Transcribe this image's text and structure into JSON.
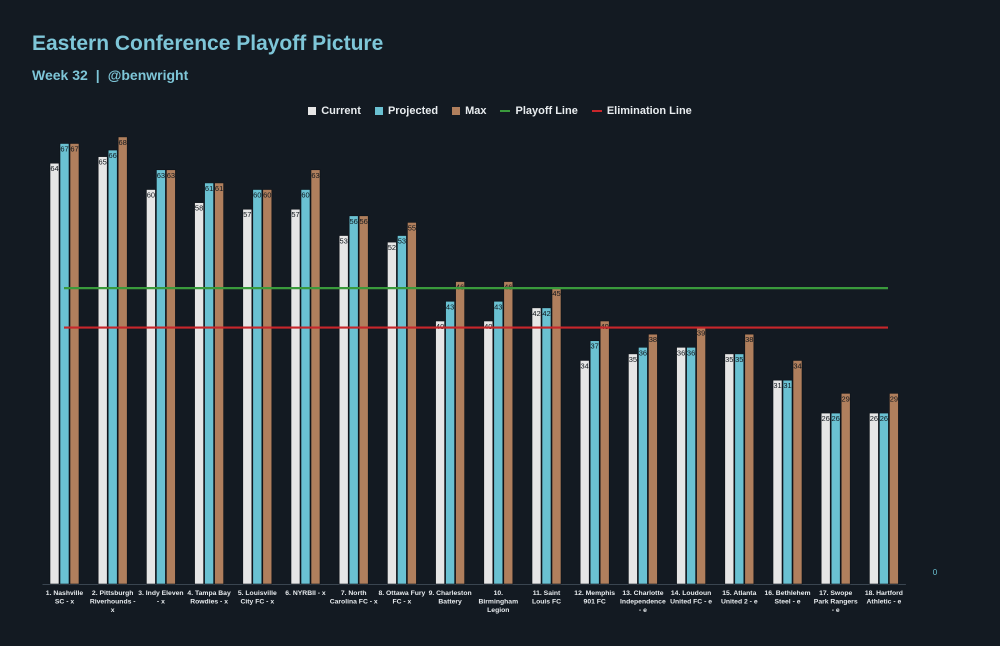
{
  "header": {
    "title": "Eastern Conference Playoff Picture",
    "week": "Week 32",
    "separator": "|",
    "handle": "@benwright"
  },
  "legend": {
    "current": "Current",
    "projected": "Projected",
    "max": "Max",
    "playoff_line": "Playoff Line",
    "elimination_line": "Elimination Line"
  },
  "colors": {
    "background": "#131a22",
    "current": "#e6e6e6",
    "projected": "#6ac1d2",
    "max": "#b07f5d",
    "playoff_line": "#3a9a3c",
    "elimination_line": "#c8262b",
    "title": "#7ec6d8"
  },
  "chart_data": {
    "type": "bar",
    "title": "Eastern Conference Playoff Picture",
    "categories": [
      [
        "1. Nashville",
        "SC - x"
      ],
      [
        "2. Pittsburgh",
        "Riverhounds -",
        "x"
      ],
      [
        "3. Indy Eleven",
        "- x"
      ],
      [
        "4. Tampa Bay",
        "Rowdies - x"
      ],
      [
        "5. Louisville",
        "City FC - x"
      ],
      [
        "6. NYRBII - x"
      ],
      [
        "7. North",
        "Carolina FC - x"
      ],
      [
        "8. Ottawa Fury",
        "FC - x"
      ],
      [
        "9. Charleston",
        "Battery"
      ],
      [
        "10.",
        "Birmingham",
        "Legion"
      ],
      [
        "11. Saint",
        "Louis FC"
      ],
      [
        "12. Memphis",
        "901 FC"
      ],
      [
        "13. Charlotte",
        "Independence",
        "- e"
      ],
      [
        "14. Loudoun",
        "United FC - e"
      ],
      [
        "15. Atlanta",
        "United 2 - e"
      ],
      [
        "16. Bethlehem",
        "Steel - e"
      ],
      [
        "17. Swope",
        "Park Rangers",
        "- e"
      ],
      [
        "18. Hartford",
        "Athletic - e"
      ]
    ],
    "series": [
      {
        "name": "Current",
        "values": [
          64,
          65,
          60,
          58,
          57,
          57,
          53,
          52,
          40,
          40,
          42,
          34,
          35,
          36,
          35,
          31,
          26,
          26
        ]
      },
      {
        "name": "Projected",
        "values": [
          67,
          66,
          63,
          61,
          60,
          60,
          56,
          53,
          43,
          43,
          42,
          37,
          36,
          36,
          35,
          31,
          26,
          26
        ]
      },
      {
        "name": "Max",
        "values": [
          67,
          68,
          63,
          61,
          60,
          63,
          56,
          55,
          46,
          46,
          45,
          40,
          38,
          39,
          38,
          34,
          29,
          29
        ]
      }
    ],
    "reference_lines": [
      {
        "name": "Playoff Line",
        "value": 45
      },
      {
        "name": "Elimination Line",
        "value": 39
      }
    ],
    "ylim": [
      0,
      70
    ],
    "y_tick_labels": [
      "0"
    ],
    "grid": false,
    "legend_position": "top-center"
  }
}
